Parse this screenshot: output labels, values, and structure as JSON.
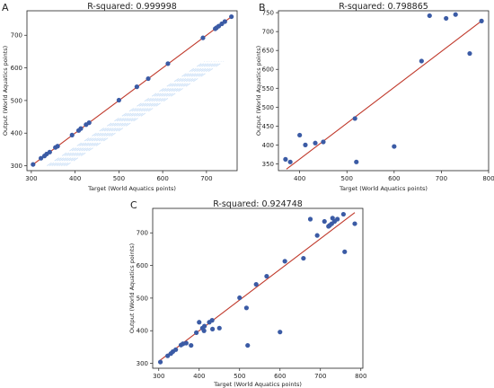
{
  "figure": {
    "panels": [
      {
        "letter": "A",
        "chart_data": {
          "type": "scatter",
          "title": "R-squared: 0.999998",
          "xlabel": "Target (World Aquatics points)",
          "ylabel": "Output (World Aquatics points)",
          "xlim": [
            290,
            770
          ],
          "ylim": [
            285,
            775
          ],
          "xticks": [
            300,
            400,
            500,
            600,
            700
          ],
          "yticks": [
            300,
            400,
            500,
            600,
            700
          ],
          "grid": false,
          "point_color": "#3b5ba5",
          "line_color": "#c0392b",
          "fit_line": {
            "x": [
              300,
              757
            ],
            "y": [
              300,
              757
            ]
          },
          "points": [
            {
              "x": 304,
              "y": 304
            },
            {
              "x": 322,
              "y": 323
            },
            {
              "x": 330,
              "y": 330
            },
            {
              "x": 335,
              "y": 336
            },
            {
              "x": 342,
              "y": 342
            },
            {
              "x": 355,
              "y": 356
            },
            {
              "x": 360,
              "y": 360
            },
            {
              "x": 393,
              "y": 394
            },
            {
              "x": 408,
              "y": 408
            },
            {
              "x": 413,
              "y": 414
            },
            {
              "x": 425,
              "y": 426
            },
            {
              "x": 432,
              "y": 432
            },
            {
              "x": 500,
              "y": 501
            },
            {
              "x": 541,
              "y": 542
            },
            {
              "x": 567,
              "y": 567
            },
            {
              "x": 612,
              "y": 613
            },
            {
              "x": 692,
              "y": 692
            },
            {
              "x": 720,
              "y": 720
            },
            {
              "x": 723,
              "y": 723
            },
            {
              "x": 728,
              "y": 728
            },
            {
              "x": 735,
              "y": 735
            },
            {
              "x": 742,
              "y": 742
            },
            {
              "x": 757,
              "y": 757
            }
          ]
        }
      },
      {
        "letter": "B",
        "chart_data": {
          "type": "scatter",
          "title": "R-squared: 0.798865",
          "xlabel": "Target (World Aquatics points)",
          "ylabel": "Output (World Aquatics points)",
          "xlim": [
            355,
            800
          ],
          "ylim": [
            332,
            755
          ],
          "xticks": [
            400,
            500,
            600,
            700,
            800
          ],
          "yticks": [
            350,
            400,
            450,
            500,
            550,
            600,
            650,
            700,
            750
          ],
          "grid": false,
          "point_color": "#3b5ba5",
          "line_color": "#c0392b",
          "fit_line": {
            "x": [
              372,
              785
            ],
            "y": [
              336,
              728
            ]
          },
          "points": [
            {
              "x": 370,
              "y": 362
            },
            {
              "x": 380,
              "y": 355
            },
            {
              "x": 400,
              "y": 426
            },
            {
              "x": 412,
              "y": 400
            },
            {
              "x": 433,
              "y": 405
            },
            {
              "x": 450,
              "y": 408
            },
            {
              "x": 517,
              "y": 470
            },
            {
              "x": 520,
              "y": 355
            },
            {
              "x": 600,
              "y": 396
            },
            {
              "x": 658,
              "y": 622
            },
            {
              "x": 675,
              "y": 742
            },
            {
              "x": 710,
              "y": 735
            },
            {
              "x": 730,
              "y": 745
            },
            {
              "x": 760,
              "y": 642
            },
            {
              "x": 785,
              "y": 728
            }
          ]
        }
      },
      {
        "letter": "C",
        "chart_data": {
          "type": "scatter",
          "title": "R-squared: 0.924748",
          "xlabel": "Target (World Aquatics points)",
          "ylabel": "Output (World Aquatics points)",
          "xlim": [
            285,
            805
          ],
          "ylim": [
            285,
            775
          ],
          "xticks": [
            300,
            400,
            500,
            600,
            700,
            800
          ],
          "yticks": [
            300,
            400,
            500,
            600,
            700
          ],
          "grid": false,
          "point_color": "#3b5ba5",
          "line_color": "#c0392b",
          "fit_line": {
            "x": [
              300,
              785
            ],
            "y": [
              306,
              762
            ]
          },
          "points": [
            {
              "x": 304,
              "y": 304
            },
            {
              "x": 322,
              "y": 323
            },
            {
              "x": 330,
              "y": 330
            },
            {
              "x": 335,
              "y": 336
            },
            {
              "x": 342,
              "y": 342
            },
            {
              "x": 355,
              "y": 356
            },
            {
              "x": 360,
              "y": 360
            },
            {
              "x": 368,
              "y": 362
            },
            {
              "x": 380,
              "y": 355
            },
            {
              "x": 393,
              "y": 394
            },
            {
              "x": 400,
              "y": 426
            },
            {
              "x": 408,
              "y": 408
            },
            {
              "x": 412,
              "y": 400
            },
            {
              "x": 413,
              "y": 414
            },
            {
              "x": 425,
              "y": 426
            },
            {
              "x": 432,
              "y": 432
            },
            {
              "x": 433,
              "y": 405
            },
            {
              "x": 450,
              "y": 408
            },
            {
              "x": 500,
              "y": 501
            },
            {
              "x": 517,
              "y": 470
            },
            {
              "x": 520,
              "y": 355
            },
            {
              "x": 541,
              "y": 542
            },
            {
              "x": 567,
              "y": 567
            },
            {
              "x": 600,
              "y": 396
            },
            {
              "x": 612,
              "y": 613
            },
            {
              "x": 658,
              "y": 622
            },
            {
              "x": 675,
              "y": 742
            },
            {
              "x": 692,
              "y": 692
            },
            {
              "x": 710,
              "y": 735
            },
            {
              "x": 720,
              "y": 720
            },
            {
              "x": 723,
              "y": 723
            },
            {
              "x": 728,
              "y": 728
            },
            {
              "x": 730,
              "y": 745
            },
            {
              "x": 735,
              "y": 735
            },
            {
              "x": 742,
              "y": 742
            },
            {
              "x": 757,
              "y": 757
            },
            {
              "x": 760,
              "y": 642
            },
            {
              "x": 785,
              "y": 728
            }
          ]
        }
      }
    ]
  }
}
